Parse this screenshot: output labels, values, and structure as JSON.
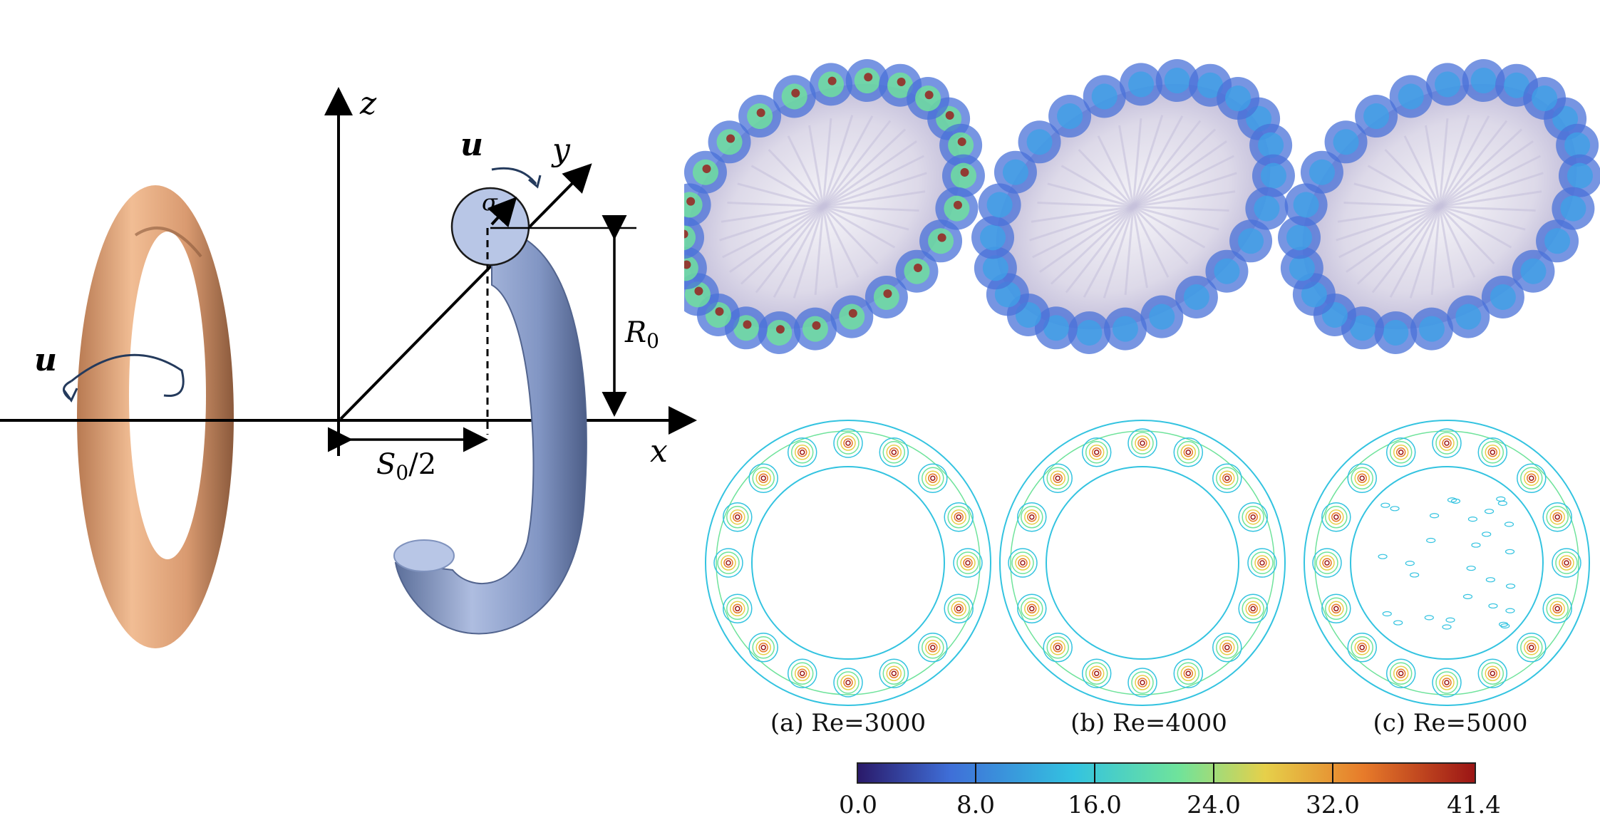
{
  "schematic": {
    "axis_labels": {
      "z": "z",
      "y": "y",
      "x": "x"
    },
    "velocity_label": "u",
    "sigma_label": "σ",
    "radius_label": "R",
    "radius_subscript": "0",
    "separation_label_pre": "S",
    "separation_subscript": "0",
    "separation_label_post": "/2",
    "colors": {
      "left_ring": "#e8a97e",
      "right_ring": "#8fa4cf",
      "core": "#b8c6e6"
    }
  },
  "panels": [
    {
      "caption": "(a) Re=3000"
    },
    {
      "caption": "(b) Re=4000"
    },
    {
      "caption": "(c) Re=5000"
    }
  ],
  "colorbar": {
    "ticks": [
      "0.0",
      "8.0",
      "16.0",
      "24.0",
      "32.0",
      "41.4"
    ],
    "colors": [
      "#2a1a6a",
      "#3f6fd8",
      "#33c3e0",
      "#6fe39b",
      "#e6d04a",
      "#e77b2a",
      "#9b1515"
    ]
  }
}
